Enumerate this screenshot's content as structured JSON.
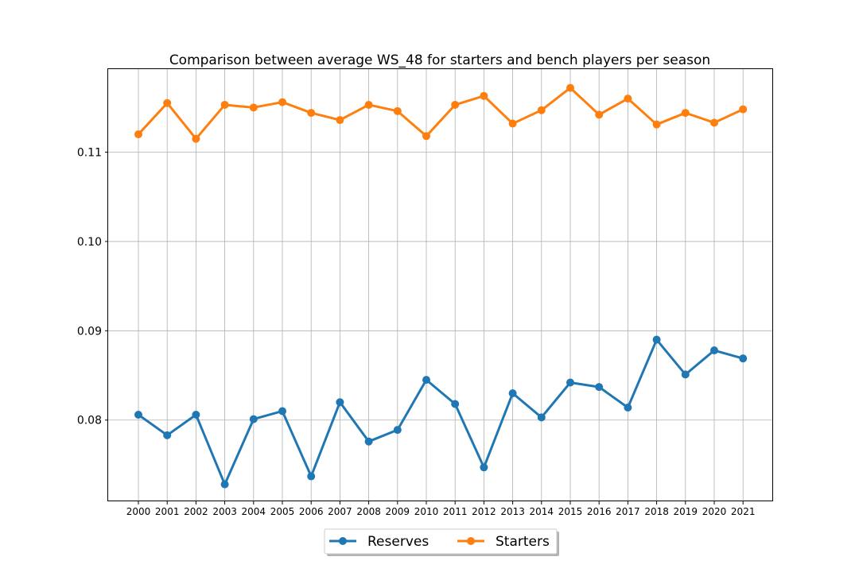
{
  "chart_data": {
    "type": "line",
    "title": "Comparison between average WS_48 for starters and bench players per season",
    "xlabel": "",
    "ylabel": "",
    "categories": [
      "2000",
      "2001",
      "2002",
      "2003",
      "2004",
      "2005",
      "2006",
      "2007",
      "2008",
      "2009",
      "2010",
      "2011",
      "2012",
      "2013",
      "2014",
      "2015",
      "2016",
      "2017",
      "2018",
      "2019",
      "2020",
      "2021"
    ],
    "yticks": [
      "0.08",
      "0.09",
      "0.10",
      "0.11"
    ],
    "ytick_values": [
      0.08,
      0.09,
      0.1,
      0.11
    ],
    "ylim": [
      0.0709,
      0.1193
    ],
    "grid": true,
    "legend_position": "bottom-center",
    "series": [
      {
        "name": "Reserves",
        "color": "#1f77b4",
        "values": [
          0.0806,
          0.0783,
          0.0806,
          0.0728,
          0.0801,
          0.081,
          0.0737,
          0.082,
          0.0776,
          0.0789,
          0.0845,
          0.0818,
          0.0747,
          0.083,
          0.0803,
          0.0842,
          0.0837,
          0.0814,
          0.089,
          0.0851,
          0.0878,
          0.0869
        ]
      },
      {
        "name": "Starters",
        "color": "#ff7f0e",
        "values": [
          0.112,
          0.1155,
          0.1115,
          0.1153,
          0.115,
          0.1156,
          0.1144,
          0.1136,
          0.1153,
          0.1146,
          0.1118,
          0.1153,
          0.1163,
          0.1132,
          0.1147,
          0.1172,
          0.1142,
          0.116,
          0.1131,
          0.1144,
          0.1133,
          0.1148
        ]
      }
    ]
  }
}
